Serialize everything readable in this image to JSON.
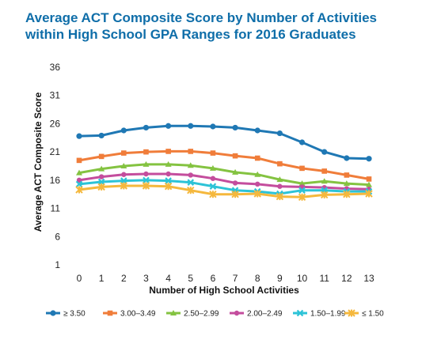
{
  "chart_data": {
    "type": "line",
    "title_line1": "Average ACT Composite Score by Number of Activities",
    "title_line2": "within High School GPA Ranges for 2016 Graduates",
    "xlabel": "Number of High School Activities",
    "ylabel": "Average ACT Composite Score",
    "x": [
      0,
      1,
      2,
      3,
      4,
      5,
      6,
      7,
      8,
      9,
      10,
      11,
      12,
      13
    ],
    "y_ticks": [
      1,
      6,
      11,
      16,
      21,
      26,
      31,
      36
    ],
    "ylim": [
      1,
      36
    ],
    "grid": false,
    "legend_position": "bottom",
    "series": [
      {
        "name": "≥ 3.50",
        "color": "#1f78b4",
        "values": [
          23.8,
          23.9,
          24.8,
          25.3,
          25.6,
          25.6,
          25.5,
          25.3,
          24.8,
          24.3,
          22.7,
          21.0,
          19.9,
          19.8
        ]
      },
      {
        "name": "3.00–3.49",
        "color": "#f07d3a",
        "values": [
          19.5,
          20.2,
          20.8,
          21.0,
          21.1,
          21.1,
          20.8,
          20.3,
          19.9,
          18.9,
          18.1,
          17.6,
          16.9,
          16.2
        ]
      },
      {
        "name": "2.50–2.99",
        "color": "#84c341",
        "values": [
          17.3,
          18.0,
          18.5,
          18.8,
          18.8,
          18.6,
          18.1,
          17.4,
          17.0,
          16.1,
          15.4,
          15.8,
          15.4,
          15.2
        ]
      },
      {
        "name": "2.00–2.49",
        "color": "#c44d9d",
        "values": [
          16.0,
          16.6,
          17.0,
          17.1,
          17.1,
          16.9,
          16.3,
          15.5,
          15.3,
          14.9,
          14.8,
          14.7,
          14.5,
          14.4
        ]
      },
      {
        "name": "1.50–1.99",
        "color": "#2cc3d7",
        "values": [
          15.3,
          15.7,
          15.9,
          16.0,
          15.9,
          15.6,
          14.9,
          14.2,
          14.0,
          13.6,
          14.2,
          14.2,
          14.0,
          14.0
        ]
      },
      {
        "name": "≤ 1.50",
        "color": "#f5b83d",
        "values": [
          14.3,
          14.8,
          15.0,
          15.0,
          14.9,
          14.2,
          13.5,
          13.5,
          13.6,
          13.1,
          13.0,
          13.4,
          13.5,
          13.6
        ]
      }
    ]
  }
}
